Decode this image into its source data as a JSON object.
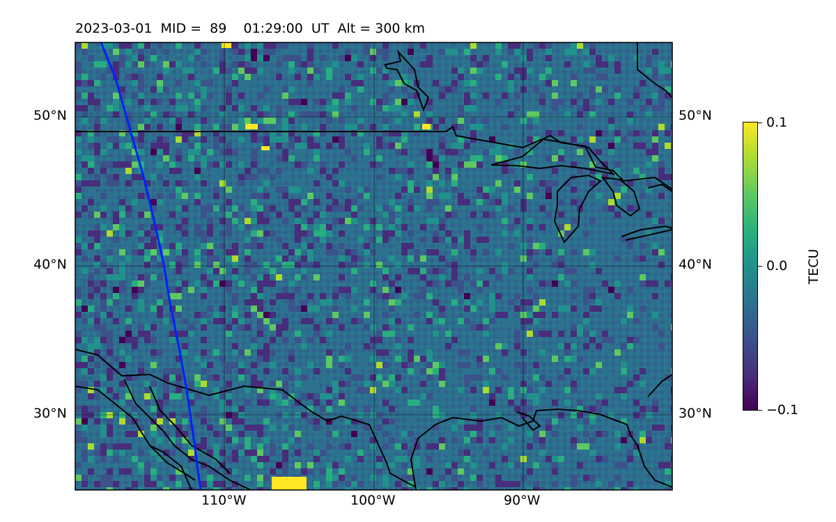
{
  "title": "2023-03-01  MID =  89    01:29:00  UT  Alt = 300 km",
  "map": {
    "extent": {
      "lon_min": -120,
      "lon_max": -80,
      "lat_min": 25,
      "lat_max": 55
    },
    "lat_ticks": [
      {
        "value": 50,
        "label": "50°N"
      },
      {
        "value": 40,
        "label": "40°N"
      },
      {
        "value": 30,
        "label": "30°N"
      }
    ],
    "lon_ticks": [
      {
        "value": -110,
        "label": "110°W"
      },
      {
        "value": -100,
        "label": "100°W"
      },
      {
        "value": -90,
        "label": "90°W"
      }
    ],
    "field": "TECU residual",
    "colormap": "viridis",
    "overlays": {
      "coastline_color": "#000000",
      "satellite_track_color": "#0022ff",
      "gridline_color": "#000000"
    }
  },
  "colorbar": {
    "label": "TECU",
    "max_label": "0.1",
    "mid_label": "0.0",
    "min_label": "−0.1",
    "range": [
      -0.1,
      0.1
    ]
  }
}
